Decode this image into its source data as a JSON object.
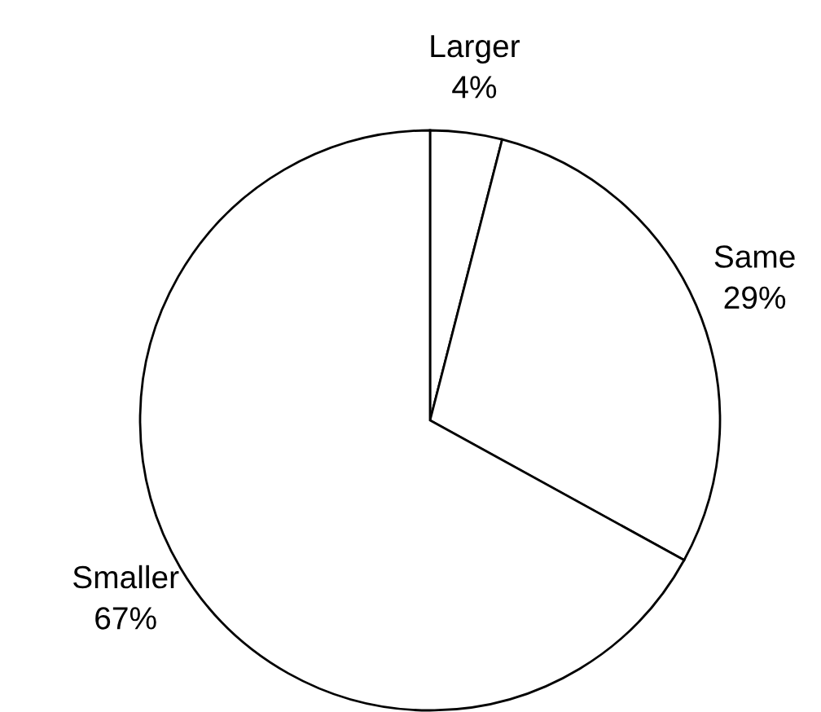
{
  "chart_data": {
    "type": "pie",
    "categories": [
      "Larger",
      "Same",
      "Smaller"
    ],
    "values": [
      4,
      29,
      67
    ],
    "value_labels": [
      "4%",
      "29%",
      "67%"
    ],
    "colors": [
      "#ffffff",
      "#ffffff",
      "#ffffff"
    ]
  }
}
